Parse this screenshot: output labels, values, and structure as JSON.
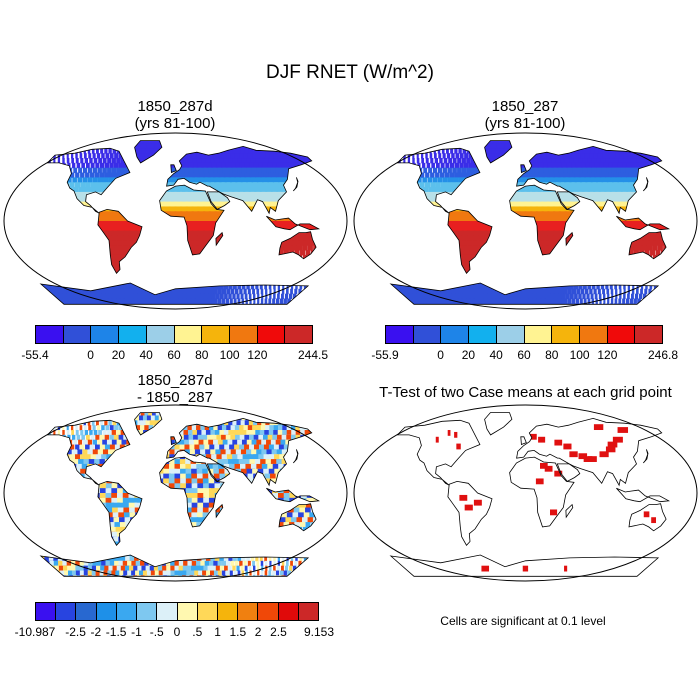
{
  "figure": {
    "title": "DJF RNET (W/m^2)"
  },
  "panels": [
    {
      "title_line1": "1850_287d",
      "title_line2": "(yrs 81-100)",
      "colorbar": {
        "labels": [
          "-55.4",
          "0",
          "20",
          "40",
          "60",
          "80",
          "100",
          "120",
          "244.5"
        ],
        "colors": [
          "#3a10f0",
          "#3050d8",
          "#1e84e8",
          "#12b0ee",
          "#9ccfe8",
          "#fff392",
          "#f5b40c",
          "#f07810",
          "#f00a0a",
          "#cc2828"
        ]
      }
    },
    {
      "title_line1": "1850_287",
      "title_line2": "(yrs 81-100)",
      "colorbar": {
        "labels": [
          "-55.9",
          "0",
          "20",
          "40",
          "60",
          "80",
          "100",
          "120",
          "246.8"
        ],
        "colors": [
          "#3a10f0",
          "#3050d8",
          "#1e84e8",
          "#12b0ee",
          "#9ccfe8",
          "#fff392",
          "#f5b40c",
          "#f07810",
          "#f00a0a",
          "#cc2828"
        ]
      }
    },
    {
      "title_line1": "1850_287d",
      "title_line2": "- 1850_287",
      "colorbar": {
        "labels": [
          "-10.987",
          "-2.5",
          "-2",
          "-1.5",
          "-1",
          "-.5",
          "0",
          ".5",
          "1",
          "1.5",
          "2",
          "2.5",
          "9.153"
        ],
        "colors": [
          "#3a10f0",
          "#2844e0",
          "#2868d0",
          "#1e90e8",
          "#3aa8f0",
          "#7ec8f0",
          "#dcf0f8",
          "#fff8b0",
          "#ffd858",
          "#f5b40c",
          "#f08010",
          "#f04808",
          "#e00a0a",
          "#cc2828"
        ]
      }
    },
    {
      "title_line1": "T-Test of two Case means at each grid point",
      "note": "Cells are significant at 0.1 level"
    }
  ]
}
